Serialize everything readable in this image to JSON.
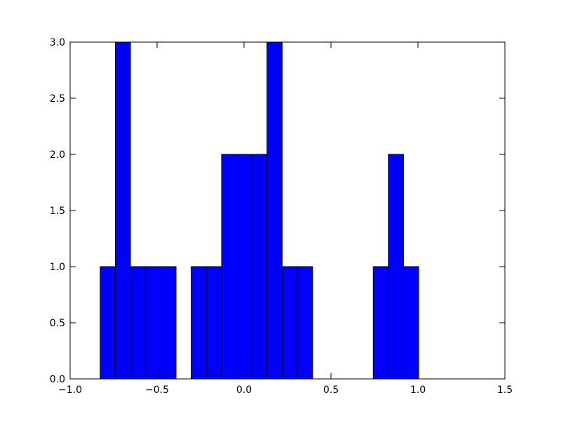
{
  "chart_data": {
    "type": "histogram",
    "bins": [
      -0.827,
      -0.74,
      -0.653,
      -0.565,
      -0.478,
      -0.391,
      -0.304,
      -0.217,
      -0.129,
      -0.042,
      0.045,
      0.132,
      0.219,
      0.307,
      0.394,
      0.481,
      0.568,
      0.655,
      0.743,
      0.83,
      0.917,
      1.004
    ],
    "counts": [
      1,
      3,
      1,
      1,
      1,
      0,
      1,
      1,
      2,
      2,
      2,
      3,
      1,
      1,
      0,
      0,
      0,
      0,
      1,
      2,
      1
    ],
    "color": "#0000ff",
    "xlim": [
      -1.0,
      1.5
    ],
    "xticks": [
      {
        "value": -1.0,
        "label": "−1.0"
      },
      {
        "value": -0.5,
        "label": "−0.5"
      },
      {
        "value": 0,
        "label": "0.0"
      },
      0.5,
      {
        "value": 1.0,
        "label": "1.0"
      },
      1.5
    ],
    "ylim": [
      0,
      3.0
    ],
    "yticks": [
      {
        "value": 0,
        "label": "0.0"
      },
      0.5,
      {
        "value": 1.0,
        "label": "1.0"
      },
      1.5,
      {
        "value": 2.0,
        "label": "2.0"
      },
      2.5,
      {
        "value": 3.0,
        "label": "3.0"
      }
    ]
  }
}
